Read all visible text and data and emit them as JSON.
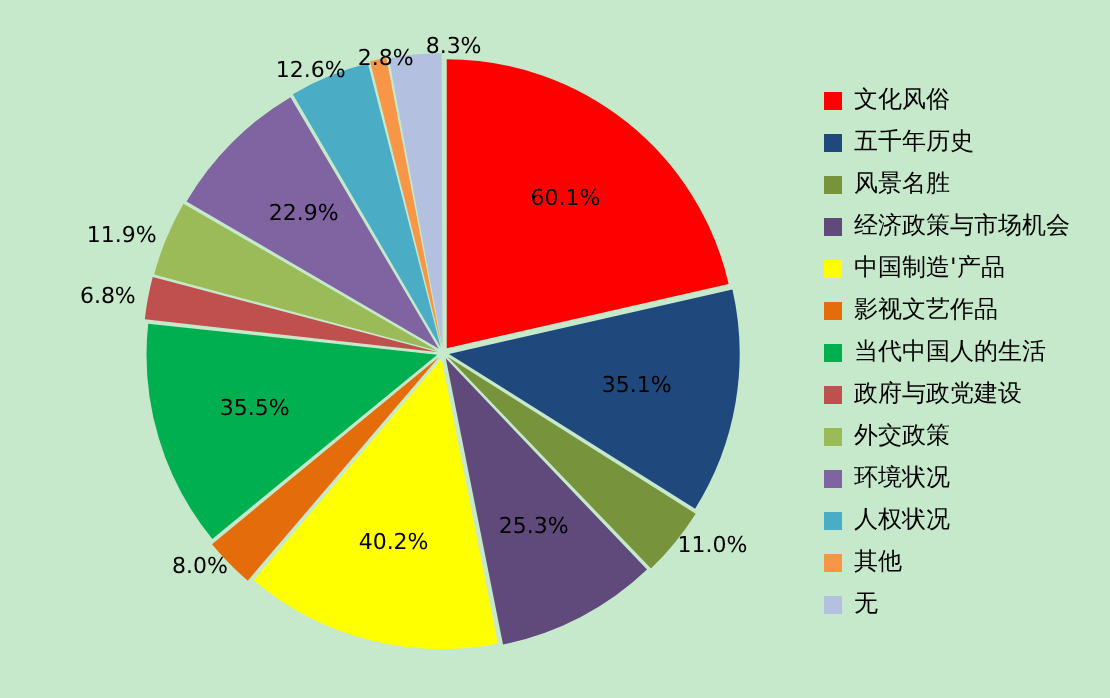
{
  "chart_data": {
    "type": "pie",
    "categories": [
      "文化风俗",
      "五千年历史",
      "风景名胜",
      "经济政策与市场机会",
      "中国制造'产品",
      "影视文艺作品",
      "当代中国人的生活",
      "政府与政党建设",
      "外交政策",
      "环境状况",
      "人权状况",
      "其他",
      "无"
    ],
    "values": [
      60.1,
      35.1,
      11.0,
      25.3,
      40.2,
      8.0,
      35.5,
      6.8,
      11.9,
      22.9,
      12.6,
      2.8,
      8.3
    ],
    "colors": [
      "#ff0000",
      "#1f497d",
      "#77933c",
      "#604a7b",
      "#ffff00",
      "#e46c0a",
      "#00b050",
      "#c0504d",
      "#9bbb59",
      "#8064a2",
      "#4bacc6",
      "#f79646",
      "#b3c0e0"
    ],
    "value_labels": [
      "60.1%",
      "35.1%",
      "11.0%",
      "25.3%",
      "40.2%",
      "8.0%",
      "35.5%",
      "6.8%",
      "11.9%",
      "22.9%",
      "12.6%",
      "2.8%",
      "8.3%"
    ],
    "legend": "right"
  }
}
